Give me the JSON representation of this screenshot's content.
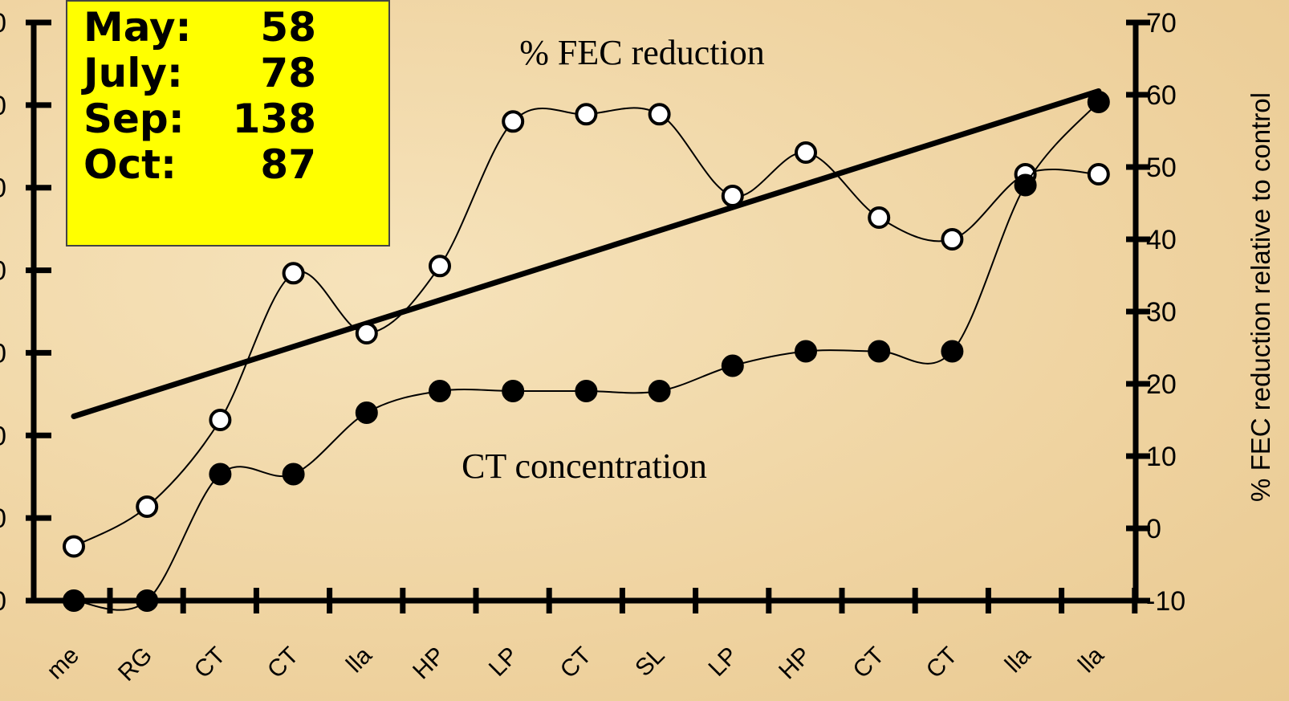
{
  "chart_data": {
    "type": "line",
    "annotations": [
      "% FEC reduction",
      "CT concentration"
    ],
    "right_axis": {
      "label": "% FEC reduction relative to control",
      "ticks": [
        "70",
        "60",
        "50",
        "40",
        "30",
        "20",
        "10",
        "0",
        "-10"
      ],
      "ylim": [
        -10,
        70
      ]
    },
    "left_axis_ticks": [
      "0",
      "0",
      "0",
      "0",
      "0",
      "0",
      "0",
      "0"
    ],
    "x_tick_labels": [
      "me",
      "RG",
      "CT",
      "CT",
      "lla",
      "HP",
      "LP",
      "CT",
      "SL",
      "LP",
      "HP",
      "CT",
      "CT",
      "lla",
      "lla"
    ],
    "series": [
      {
        "name": "% FEC reduction",
        "marker": "open-circle",
        "x": [
          1,
          2,
          3,
          4,
          5,
          6,
          7,
          8,
          9,
          10,
          11,
          12,
          13,
          14,
          15
        ],
        "values": [
          -2.5,
          3,
          15,
          35.3,
          27,
          36.3,
          56.3,
          57.3,
          57.3,
          46,
          52,
          43,
          40,
          49,
          49
        ]
      },
      {
        "name": "CT concentration",
        "marker": "filled-circle",
        "x": [
          1,
          2,
          3,
          4,
          5,
          6,
          7,
          8,
          9,
          10,
          11,
          12,
          13,
          14,
          15
        ],
        "values": [
          -10,
          -10,
          7.5,
          7.5,
          16,
          19,
          19,
          19,
          19,
          22.5,
          24.5,
          24.5,
          24.5,
          47.5,
          59
        ]
      }
    ],
    "trend_line": {
      "x": [
        1,
        15
      ],
      "values": [
        15.5,
        60.5
      ]
    }
  },
  "month_box": {
    "rows": [
      {
        "month": "May:",
        "value": "58"
      },
      {
        "month": "July:",
        "value": "78"
      },
      {
        "month": "Sep:",
        "value": "138"
      },
      {
        "month": "Oct:",
        "value": "87"
      }
    ]
  }
}
